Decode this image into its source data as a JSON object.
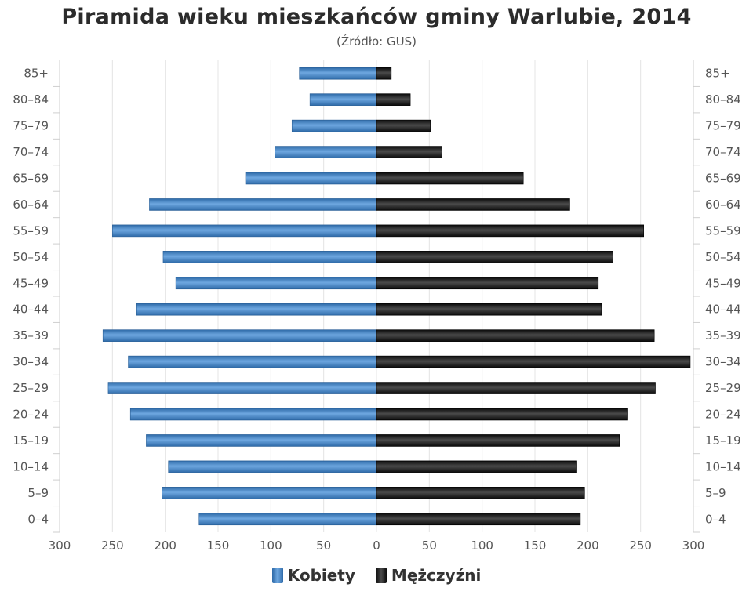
{
  "chart_data": {
    "type": "bar",
    "title": "Piramida wieku mieszkańców gminy Warlubie, 2014",
    "subtitle": "(Źródło: GUS)",
    "categories": [
      "85+",
      "80-84",
      "75-79",
      "70-74",
      "65-69",
      "60-64",
      "55-59",
      "50-54",
      "45-49",
      "40-44",
      "35-39",
      "30-34",
      "25-29",
      "20-24",
      "15-19",
      "10-14",
      "5-9",
      "0-4"
    ],
    "series": [
      {
        "name": "Kobiety",
        "color": "#3d7ec0",
        "values": [
          73,
          63,
          80,
          96,
          124,
          215,
          250,
          202,
          190,
          227,
          259,
          235,
          254,
          233,
          218,
          197,
          203,
          168
        ]
      },
      {
        "name": "Mężczyźni",
        "color": "#1a1a1a",
        "values": [
          14,
          32,
          51,
          62,
          139,
          183,
          253,
          224,
          210,
          213,
          263,
          297,
          264,
          238,
          230,
          189,
          197,
          193
        ]
      }
    ],
    "xlim": [
      -300,
      300
    ],
    "x_ticks": [
      300,
      250,
      200,
      150,
      100,
      50,
      0,
      50,
      100,
      150,
      200,
      250,
      300
    ],
    "grid": true,
    "legend_position": "bottom"
  }
}
